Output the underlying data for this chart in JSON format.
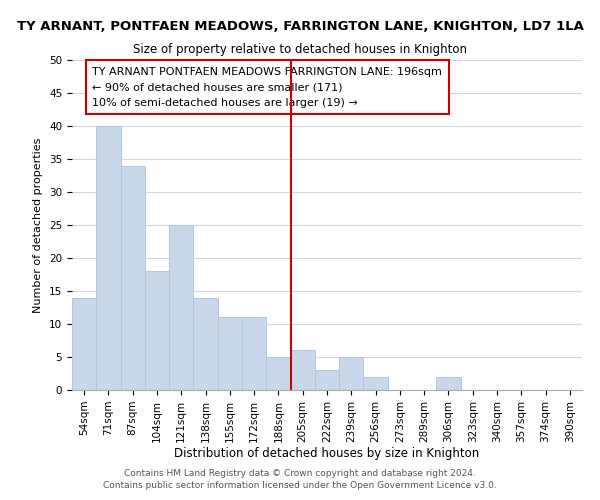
{
  "title": "TY ARNANT, PONTFAEN MEADOWS, FARRINGTON LANE, KNIGHTON, LD7 1LA",
  "subtitle": "Size of property relative to detached houses in Knighton",
  "xlabel": "Distribution of detached houses by size in Knighton",
  "ylabel": "Number of detached properties",
  "bar_color": "#c8d8ea",
  "bar_edge_color": "#b0c8dc",
  "bin_labels": [
    "54sqm",
    "71sqm",
    "87sqm",
    "104sqm",
    "121sqm",
    "138sqm",
    "155sqm",
    "172sqm",
    "188sqm",
    "205sqm",
    "222sqm",
    "239sqm",
    "256sqm",
    "273sqm",
    "289sqm",
    "306sqm",
    "323sqm",
    "340sqm",
    "357sqm",
    "374sqm",
    "390sqm"
  ],
  "bar_heights": [
    14,
    40,
    34,
    18,
    25,
    14,
    11,
    11,
    5,
    6,
    3,
    5,
    2,
    0,
    0,
    2,
    0,
    0,
    0,
    0,
    0
  ],
  "ylim": [
    0,
    50
  ],
  "yticks": [
    0,
    5,
    10,
    15,
    20,
    25,
    30,
    35,
    40,
    45,
    50
  ],
  "vline_x": 9,
  "vline_color": "#cc0000",
  "annotation_title": "TY ARNANT PONTFAEN MEADOWS FARRINGTON LANE: 196sqm",
  "annotation_line1": "← 90% of detached houses are smaller (171)",
  "annotation_line2": "10% of semi-detached houses are larger (19) →",
  "annotation_box_color": "#ffffff",
  "annotation_box_edge_color": "#cc0000",
  "footer_line1": "Contains HM Land Registry data © Crown copyright and database right 2024.",
  "footer_line2": "Contains public sector information licensed under the Open Government Licence v3.0.",
  "grid_color": "#d0d8e8",
  "title_fontsize": 9.5,
  "subtitle_fontsize": 8.5,
  "xlabel_fontsize": 8.5,
  "ylabel_fontsize": 8,
  "tick_fontsize": 7.5,
  "annotation_title_fontsize": 8,
  "annotation_text_fontsize": 8,
  "footer_fontsize": 6.5
}
